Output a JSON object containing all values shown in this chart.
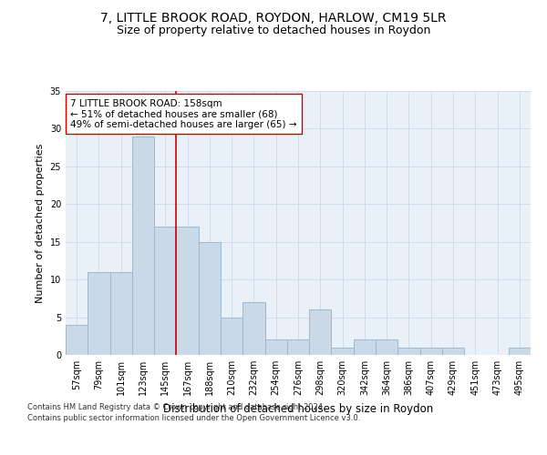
{
  "title1": "7, LITTLE BROOK ROAD, ROYDON, HARLOW, CM19 5LR",
  "title2": "Size of property relative to detached houses in Roydon",
  "xlabel": "Distribution of detached houses by size in Roydon",
  "ylabel": "Number of detached properties",
  "footnote1": "Contains HM Land Registry data © Crown copyright and database right 2024.",
  "footnote2": "Contains public sector information licensed under the Open Government Licence v3.0.",
  "categories": [
    "57sqm",
    "79sqm",
    "101sqm",
    "123sqm",
    "145sqm",
    "167sqm",
    "188sqm",
    "210sqm",
    "232sqm",
    "254sqm",
    "276sqm",
    "298sqm",
    "320sqm",
    "342sqm",
    "364sqm",
    "386sqm",
    "407sqm",
    "429sqm",
    "451sqm",
    "473sqm",
    "495sqm"
  ],
  "values": [
    4,
    11,
    11,
    29,
    17,
    17,
    15,
    5,
    7,
    2,
    2,
    6,
    1,
    2,
    2,
    1,
    1,
    1,
    0,
    0,
    1
  ],
  "bar_color": "#c9d9e8",
  "bar_edge_color": "#a0b8cc",
  "bar_linewidth": 0.7,
  "red_line_index": 5,
  "red_line_color": "#cc0000",
  "annotation_line1": "7 LITTLE BROOK ROAD: 158sqm",
  "annotation_line2": "← 51% of detached houses are smaller (68)",
  "annotation_line3": "49% of semi-detached houses are larger (65) →",
  "annotation_box_color": "white",
  "annotation_box_edge": "#cc0000",
  "ylim": [
    0,
    35
  ],
  "yticks": [
    0,
    5,
    10,
    15,
    20,
    25,
    30,
    35
  ],
  "grid_color": "#d0dcec",
  "background_color": "#eaf0f8",
  "fig_background": "#ffffff",
  "title1_fontsize": 10,
  "title2_fontsize": 9,
  "xlabel_fontsize": 8.5,
  "ylabel_fontsize": 8,
  "tick_fontsize": 7,
  "annotation_fontsize": 7.5,
  "footnote_fontsize": 6
}
